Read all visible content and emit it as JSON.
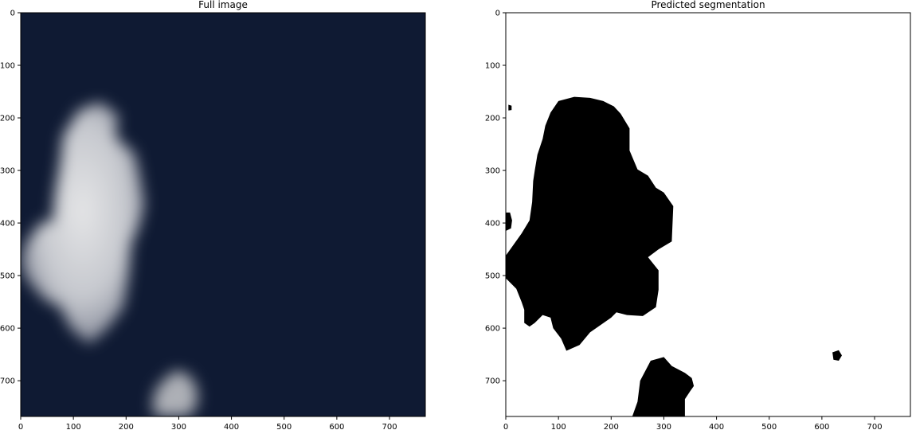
{
  "chart_data": [
    {
      "type": "image",
      "title": "Full image",
      "content": "satellite photo of dark blue ocean with white cloud",
      "xlim": [
        0,
        768
      ],
      "ylim": [
        768,
        0
      ],
      "xticks": [
        0,
        100,
        200,
        300,
        400,
        500,
        600,
        700
      ],
      "yticks": [
        0,
        100,
        200,
        300,
        400,
        500,
        600,
        700
      ],
      "background_color": "#0f1a33",
      "feature_color": "#e2e2e2",
      "regions": [
        {
          "name": "main-cloud",
          "outline": [
            [
              110,
              185
            ],
            [
              150,
              170
            ],
            [
              185,
              195
            ],
            [
              180,
              235
            ],
            [
              200,
              255
            ],
            [
              215,
              265
            ],
            [
              225,
              305
            ],
            [
              235,
              365
            ],
            [
              225,
              405
            ],
            [
              210,
              440
            ],
            [
              205,
              500
            ],
            [
              195,
              560
            ],
            [
              165,
              600
            ],
            [
              130,
              630
            ],
            [
              95,
              600
            ],
            [
              75,
              560
            ],
            [
              45,
              545
            ],
            [
              10,
              505
            ],
            [
              0,
              475
            ],
            [
              8,
              440
            ],
            [
              30,
              410
            ],
            [
              45,
              395
            ],
            [
              60,
              400
            ],
            [
              65,
              345
            ],
            [
              75,
              285
            ],
            [
              80,
              235
            ]
          ]
        },
        {
          "name": "bottom-cloud",
          "outline": [
            [
              270,
              700
            ],
            [
              295,
              680
            ],
            [
              320,
              690
            ],
            [
              335,
              715
            ],
            [
              335,
              745
            ],
            [
              320,
              768
            ],
            [
              255,
              768
            ],
            [
              250,
              745
            ],
            [
              255,
              720
            ]
          ]
        }
      ]
    },
    {
      "type": "image",
      "title": "Predicted segmentation",
      "content": "binary mask, black mask on white",
      "xlim": [
        0,
        768
      ],
      "ylim": [
        768,
        0
      ],
      "xticks": [
        0,
        100,
        200,
        300,
        400,
        500,
        600,
        700
      ],
      "yticks": [
        0,
        100,
        200,
        300,
        400,
        500,
        600,
        700
      ],
      "background_color": "#ffffff",
      "feature_color": "#000000",
      "regions": [
        {
          "name": "main-mask",
          "outline": [
            [
              85,
              190
            ],
            [
              100,
              168
            ],
            [
              130,
              160
            ],
            [
              160,
              162
            ],
            [
              185,
              168
            ],
            [
              205,
              178
            ],
            [
              218,
              192
            ],
            [
              235,
              220
            ],
            [
              235,
              262
            ],
            [
              250,
              298
            ],
            [
              270,
              310
            ],
            [
              285,
              333
            ],
            [
              300,
              342
            ],
            [
              318,
              368
            ],
            [
              315,
              435
            ],
            [
              290,
              450
            ],
            [
              270,
              465
            ],
            [
              290,
              490
            ],
            [
              290,
              527
            ],
            [
              285,
              560
            ],
            [
              260,
              577
            ],
            [
              230,
              575
            ],
            [
              210,
              570
            ],
            [
              200,
              580
            ],
            [
              190,
              587
            ],
            [
              160,
              608
            ],
            [
              140,
              632
            ],
            [
              115,
              643
            ],
            [
              105,
              620
            ],
            [
              90,
              600
            ],
            [
              85,
              580
            ],
            [
              70,
              575
            ],
            [
              55,
              590
            ],
            [
              45,
              597
            ],
            [
              35,
              590
            ],
            [
              35,
              565
            ],
            [
              30,
              550
            ],
            [
              20,
              525
            ],
            [
              0,
              505
            ],
            [
              0,
              462
            ],
            [
              10,
              448
            ],
            [
              30,
              420
            ],
            [
              45,
              395
            ],
            [
              50,
              360
            ],
            [
              52,
              320
            ],
            [
              55,
              300
            ],
            [
              60,
              270
            ],
            [
              70,
              240
            ],
            [
              75,
              215
            ]
          ]
        },
        {
          "name": "left-blob",
          "outline": [
            [
              0,
              380
            ],
            [
              8,
              380
            ],
            [
              12,
              395
            ],
            [
              10,
              410
            ],
            [
              0,
              415
            ]
          ]
        },
        {
          "name": "small-speck",
          "outline": [
            [
              5,
              175
            ],
            [
              11,
              177
            ],
            [
              11,
              185
            ],
            [
              5,
              186
            ]
          ]
        },
        {
          "name": "bottom-mask",
          "outline": [
            [
              255,
              700
            ],
            [
              275,
              662
            ],
            [
              300,
              655
            ],
            [
              315,
              672
            ],
            [
              340,
              685
            ],
            [
              353,
              695
            ],
            [
              357,
              710
            ],
            [
              350,
              720
            ],
            [
              340,
              735
            ],
            [
              340,
              768
            ],
            [
              240,
              768
            ],
            [
              250,
              740
            ]
          ]
        },
        {
          "name": "right-speck",
          "outline": [
            [
              620,
              646
            ],
            [
              632,
              642
            ],
            [
              638,
              652
            ],
            [
              632,
              662
            ],
            [
              622,
              660
            ]
          ]
        }
      ]
    }
  ]
}
